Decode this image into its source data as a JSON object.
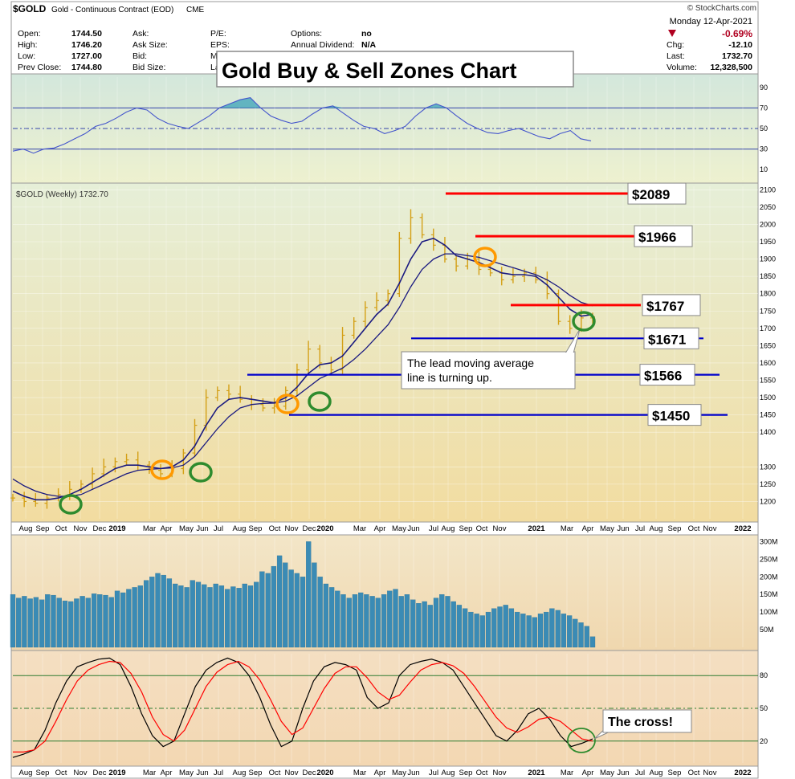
{
  "header": {
    "symbol": "$GOLD",
    "name": "Gold - Continuous Contract (EOD)",
    "exchange": "CME",
    "copyright": "© StockCharts.com",
    "date": "Monday  12-Apr-2021",
    "change_pct": "-0.69%",
    "fields_left": [
      {
        "label": "Open:",
        "value": "1744.50"
      },
      {
        "label": "High:",
        "value": "1746.20"
      },
      {
        "label": "Low:",
        "value": "1727.00"
      },
      {
        "label": "Prev Close:",
        "value": "1744.80"
      }
    ],
    "fields_mid": [
      {
        "label": "Ask:",
        "value": ""
      },
      {
        "label": "Ask Size:",
        "value": ""
      },
      {
        "label": "Bid:",
        "value": ""
      },
      {
        "label": "Bid Size:",
        "value": ""
      }
    ],
    "fields_mid2": [
      {
        "label": "P/E:",
        "value": ""
      },
      {
        "label": "EPS:",
        "value": ""
      },
      {
        "label": "Mk",
        "value": ""
      },
      {
        "label": "La",
        "value": ""
      }
    ],
    "fields_mid3": [
      {
        "label": "Options:",
        "value": "no"
      },
      {
        "label": "Annual Dividend:",
        "value": "N/A"
      }
    ],
    "fields_right": [
      {
        "label": "Chg:",
        "value": "-12.10"
      },
      {
        "label": "Last:",
        "value": "1732.70"
      },
      {
        "label": "Volume:",
        "value": "12,328,500"
      }
    ]
  },
  "title_box": "Gold Buy & Sell Zones Chart",
  "price_legend": "$GOLD (Weekly) 1732.70",
  "colors": {
    "up": "#d4a017",
    "ma": "#1a1a80",
    "zone_sell": "#ff0000",
    "zone_buy": "#0000cc",
    "vol": "#3a8bb5",
    "rsi": "#4455cc",
    "stoch_k": "#000000",
    "stoch_d": "#ff0000",
    "circle_green": "#2e8b2e",
    "circle_orange": "#ff9900"
  },
  "chart_data": [
    {
      "type": "line",
      "panel": "rsi",
      "ylim": [
        0,
        100
      ],
      "y_ticks": [
        "90",
        "70",
        "50",
        "30",
        "10"
      ],
      "reference_lines": [
        70,
        50,
        30
      ],
      "series": [
        {
          "values": [
            28,
            30,
            26,
            30,
            31,
            35,
            40,
            45,
            52,
            55,
            60,
            66,
            70,
            68,
            60,
            55,
            52,
            50,
            56,
            62,
            70,
            74,
            78,
            80,
            70,
            62,
            58,
            55,
            57,
            64,
            70,
            72,
            65,
            58,
            52,
            50,
            45,
            48,
            52,
            62,
            70,
            74,
            70,
            62,
            55,
            50,
            46,
            45,
            48,
            50,
            46,
            42,
            40,
            45,
            48,
            40,
            38
          ]
        }
      ]
    },
    {
      "type": "line",
      "panel": "price",
      "ylim": [
        1150,
        2110
      ],
      "y_ticks": [
        "2100",
        "2050",
        "2000",
        "1950",
        "1900",
        "1850",
        "1800",
        "1750",
        "1700",
        "1650",
        "1600",
        "1550",
        "1500",
        "1450",
        "1400",
        "1300",
        "1250",
        "1200"
      ],
      "x_ticks": [
        "Aug",
        "Sep",
        "Oct",
        "Nov",
        "Dec",
        "2019",
        "Mar",
        "Apr",
        "May",
        "Jun",
        "Jul",
        "Aug",
        "Sep",
        "Oct",
        "Nov",
        "Dec",
        "2020",
        "Mar",
        "Apr",
        "May",
        "Jun",
        "Jul",
        "Aug",
        "Sep",
        "Oct",
        "Nov",
        "2021",
        "Mar",
        "Apr",
        "May",
        "Jun",
        "Jul",
        "Aug",
        "Sep",
        "Oct",
        "Nov",
        "2022"
      ],
      "close": [
        1210,
        1200,
        1195,
        1210,
        1220,
        1235,
        1250,
        1280,
        1300,
        1315,
        1320,
        1305,
        1290,
        1280,
        1295,
        1340,
        1420,
        1500,
        1520,
        1510,
        1495,
        1480,
        1470,
        1475,
        1520,
        1580,
        1640,
        1600,
        1580,
        1680,
        1720,
        1760,
        1780,
        1800,
        1960,
        2020,
        1970,
        1940,
        1900,
        1880,
        1900,
        1870,
        1860,
        1840,
        1850,
        1860,
        1840,
        1800,
        1720,
        1700,
        1730,
        1733
      ],
      "series": [
        {
          "name": "lead MA",
          "values": [
            1230,
            1215,
            1205,
            1205,
            1210,
            1220,
            1235,
            1255,
            1275,
            1295,
            1305,
            1305,
            1300,
            1295,
            1300,
            1320,
            1360,
            1420,
            1470,
            1495,
            1500,
            1495,
            1490,
            1485,
            1500,
            1530,
            1570,
            1595,
            1600,
            1620,
            1660,
            1700,
            1740,
            1770,
            1830,
            1900,
            1950,
            1960,
            1940,
            1910,
            1900,
            1890,
            1875,
            1860,
            1855,
            1855,
            1850,
            1825,
            1790,
            1755,
            1735,
            1740
          ]
        },
        {
          "name": "lag MA",
          "values": [
            1265,
            1245,
            1230,
            1220,
            1215,
            1215,
            1220,
            1235,
            1250,
            1265,
            1280,
            1290,
            1293,
            1295,
            1297,
            1305,
            1330,
            1370,
            1410,
            1445,
            1470,
            1480,
            1483,
            1484,
            1490,
            1505,
            1530,
            1555,
            1570,
            1585,
            1610,
            1640,
            1675,
            1710,
            1760,
            1820,
            1870,
            1900,
            1915,
            1915,
            1910,
            1905,
            1895,
            1885,
            1875,
            1865,
            1855,
            1840,
            1820,
            1795,
            1775,
            1765
          ]
        }
      ],
      "annotations": [
        {
          "text": "$2089",
          "value": 2089,
          "kind": "sell"
        },
        {
          "text": "$1966",
          "value": 1966,
          "kind": "sell"
        },
        {
          "text": "$1767",
          "value": 1767,
          "kind": "sell"
        },
        {
          "text": "$1671",
          "value": 1671,
          "kind": "buy"
        },
        {
          "text": "$1566",
          "value": 1566,
          "kind": "buy"
        },
        {
          "text": "$1450",
          "value": 1450,
          "kind": "buy"
        },
        {
          "text": "The lead moving average line is turning up."
        }
      ]
    },
    {
      "type": "bar",
      "panel": "volume",
      "ylim": [
        0,
        310
      ],
      "y_ticks": [
        "300M",
        "250M",
        "200M",
        "150M",
        "100M",
        "50M"
      ],
      "values": [
        150,
        140,
        145,
        138,
        142,
        135,
        150,
        148,
        140,
        132,
        130,
        138,
        145,
        140,
        152,
        150,
        148,
        142,
        160,
        155,
        165,
        170,
        175,
        190,
        200,
        210,
        205,
        195,
        180,
        175,
        170,
        190,
        185,
        178,
        170,
        180,
        175,
        165,
        172,
        168,
        180,
        175,
        185,
        215,
        210,
        230,
        260,
        240,
        220,
        210,
        200,
        300,
        240,
        200,
        180,
        170,
        160,
        150,
        140,
        150,
        155,
        150,
        145,
        140,
        150,
        160,
        165,
        145,
        150,
        135,
        125,
        130,
        120,
        140,
        150,
        145,
        130,
        120,
        110,
        100,
        95,
        90,
        100,
        110,
        115,
        120,
        110,
        100,
        95,
        90,
        85,
        95,
        100,
        110,
        105,
        95,
        90,
        80,
        70,
        60,
        30
      ]
    },
    {
      "type": "line",
      "panel": "stochastic",
      "ylim": [
        0,
        100
      ],
      "y_ticks": [
        "80",
        "50",
        "20"
      ],
      "reference_lines": [
        80,
        50,
        20
      ],
      "series": [
        {
          "name": "%K",
          "values": [
            5,
            8,
            12,
            30,
            55,
            75,
            88,
            92,
            95,
            96,
            90,
            70,
            45,
            25,
            15,
            20,
            45,
            70,
            85,
            92,
            96,
            92,
            80,
            60,
            35,
            15,
            20,
            50,
            75,
            88,
            92,
            90,
            85,
            60,
            50,
            55,
            80,
            90,
            93,
            95,
            92,
            85,
            70,
            55,
            40,
            25,
            20,
            30,
            45,
            50,
            40,
            25,
            15,
            18,
            22
          ]
        },
        {
          "name": "%D",
          "values": [
            10,
            10,
            12,
            20,
            38,
            58,
            75,
            85,
            90,
            93,
            92,
            82,
            65,
            42,
            26,
            20,
            30,
            50,
            70,
            83,
            90,
            93,
            88,
            76,
            58,
            38,
            26,
            32,
            50,
            68,
            82,
            88,
            88,
            78,
            65,
            58,
            62,
            74,
            85,
            90,
            92,
            89,
            82,
            70,
            56,
            42,
            32,
            28,
            33,
            40,
            42,
            38,
            30,
            22,
            20
          ]
        }
      ],
      "annotations": [
        {
          "text": "The cross!"
        }
      ]
    }
  ]
}
